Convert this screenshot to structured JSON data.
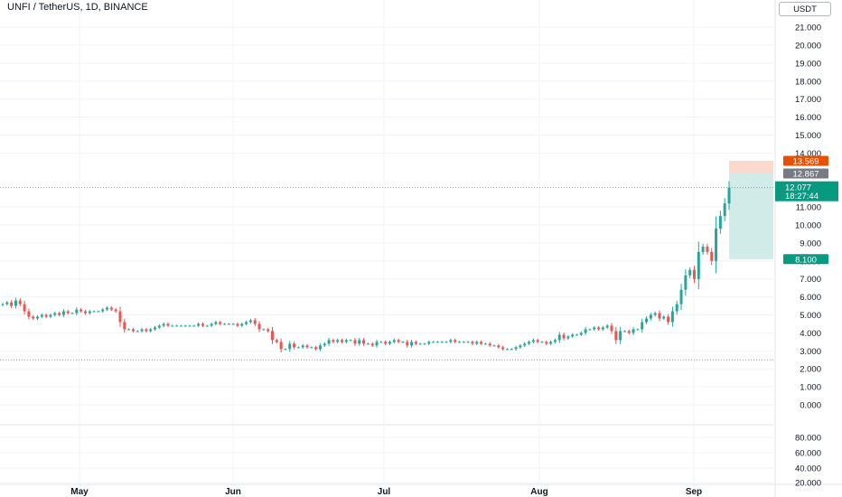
{
  "header": {
    "symbol_title": "UNFI / TetherUS, 1D, BINANCE",
    "currency_button": "USDT"
  },
  "colors": {
    "up": "#26a69a",
    "down": "#ef5350",
    "price_label": "#089981",
    "stop_label": "#e65100",
    "last_label": "#787b86",
    "target_label": "#089981",
    "profit_zone": "#d1ece8",
    "loss_zone": "#fbd9cc"
  },
  "chart_data": {
    "type": "candlestick",
    "title": "UNFI / TetherUS, 1D, BINANCE",
    "x_ticks": [
      "May",
      "Jun",
      "Jul",
      "Aug",
      "Sep"
    ],
    "price_axis": {
      "ticks": [
        "21.000",
        "20.000",
        "19.000",
        "18.000",
        "17.000",
        "16.000",
        "15.000",
        "14.000",
        "11.000",
        "10.000",
        "9.000",
        "8.000",
        "7.000",
        "6.000",
        "5.000",
        "4.000",
        "3.000",
        "2.000",
        "1.000",
        "0.000"
      ],
      "tick_values": [
        21,
        20,
        19,
        18,
        17,
        16,
        15,
        14,
        11,
        10,
        9,
        8,
        7,
        6,
        5,
        4,
        3,
        2,
        1,
        0
      ],
      "range": [
        0,
        21.5
      ]
    },
    "volume_axis": {
      "ticks": [
        "80.000",
        "60.000",
        "40.000",
        "20.000"
      ],
      "tick_values": [
        80,
        60,
        40,
        20
      ]
    },
    "price_labels": {
      "stop": "13.569",
      "last": "12.867",
      "current": "12.077",
      "countdown": "18:27:44",
      "target": "8.100"
    },
    "position": {
      "entry": 12.867,
      "stop": 13.569,
      "target": 8.1
    },
    "reference_lines": [
      2.5,
      12.077
    ],
    "closes": [
      5.6,
      5.7,
      5.5,
      5.8,
      5.6,
      5.2,
      4.9,
      4.8,
      4.9,
      5.0,
      4.9,
      5.0,
      5.1,
      5.0,
      5.2,
      5.1,
      5.1,
      5.3,
      5.2,
      5.1,
      5.2,
      5.2,
      5.2,
      5.3,
      5.4,
      5.3,
      5.2,
      4.6,
      4.2,
      4.2,
      4.1,
      4.1,
      4.2,
      4.1,
      4.2,
      4.3,
      4.4,
      4.5,
      4.4,
      4.4,
      4.4,
      4.4,
      4.4,
      4.4,
      4.4,
      4.5,
      4.4,
      4.4,
      4.5,
      4.6,
      4.5,
      4.5,
      4.5,
      4.5,
      4.4,
      4.5,
      4.6,
      4.7,
      4.5,
      4.2,
      4.2,
      4.1,
      3.6,
      3.5,
      3.1,
      3.1,
      3.4,
      3.2,
      3.2,
      3.3,
      3.2,
      3.2,
      3.1,
      3.3,
      3.4,
      3.6,
      3.5,
      3.6,
      3.5,
      3.6,
      3.6,
      3.4,
      3.6,
      3.4,
      3.4,
      3.3,
      3.5,
      3.5,
      3.4,
      3.5,
      3.6,
      3.5,
      3.5,
      3.3,
      3.5,
      3.4,
      3.4,
      3.4,
      3.5,
      3.5,
      3.5,
      3.5,
      3.5,
      3.6,
      3.5,
      3.5,
      3.5,
      3.5,
      3.4,
      3.5,
      3.4,
      3.4,
      3.3,
      3.3,
      3.2,
      3.1,
      3.1,
      3.1,
      3.2,
      3.3,
      3.4,
      3.5,
      3.6,
      3.5,
      3.5,
      3.4,
      3.5,
      3.6,
      3.9,
      3.7,
      3.8,
      3.9,
      3.9,
      4.0,
      4.2,
      4.2,
      4.3,
      4.2,
      4.3,
      4.4,
      4.1,
      3.6,
      4.1,
      4.1,
      4.0,
      4.2,
      4.2,
      4.6,
      4.8,
      5.0,
      5.1,
      4.8,
      4.9,
      4.6,
      5.2,
      5.6,
      6.4,
      7.2,
      7.5,
      7.0,
      8.5,
      8.8,
      8.5,
      8.0,
      9.8,
      10.5,
      11.2,
      12.08
    ]
  }
}
